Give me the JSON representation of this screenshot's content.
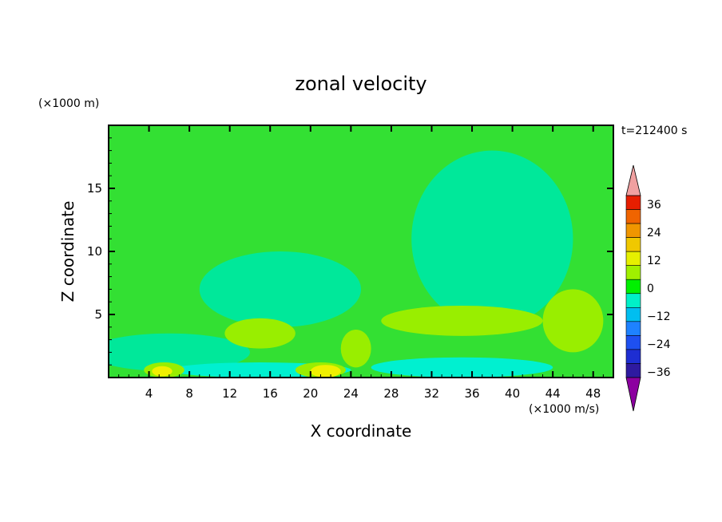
{
  "chart_data": {
    "type": "heatmap",
    "title": "zonal velocity",
    "xlabel": "X coordinate",
    "ylabel": "Z coordinate",
    "x_unit": "(×1000 m/s)",
    "y_unit": "(×1000 m)",
    "time_label": "t=212400 s",
    "xlim": [
      0,
      50
    ],
    "ylim": [
      0,
      20
    ],
    "xticks": [
      4,
      8,
      12,
      16,
      20,
      24,
      28,
      32,
      36,
      40,
      44,
      48
    ],
    "yticks": [
      5,
      10,
      15
    ],
    "colorbar": {
      "levels": [
        -42,
        -36,
        -30,
        -24,
        -18,
        -12,
        -6,
        0,
        6,
        12,
        18,
        24,
        30,
        36,
        42
      ],
      "labeled_ticks": [
        36,
        24,
        12,
        0,
        -12,
        -24,
        -36
      ],
      "colors": [
        "#7800a0",
        "#2e1aa0",
        "#1e2ed2",
        "#1e50f0",
        "#1e82ff",
        "#00bef0",
        "#00f0c8",
        "#00f000",
        "#a0f000",
        "#e6f000",
        "#f0c800",
        "#f09600",
        "#f06400",
        "#e61e00",
        "#f0a0a0"
      ],
      "over_color": "#f0a0a0",
      "under_color": "#8c00a0"
    },
    "fields": [
      {
        "level": -6,
        "description_value": "large weak negative region in upper right",
        "cx": 38,
        "cy": 11,
        "rx": 8,
        "ry": 7
      },
      {
        "level": -6,
        "cx": 17,
        "cy": 7,
        "rx": 8,
        "ry": 3
      },
      {
        "level": -6,
        "cx": 6,
        "cy": 2,
        "rx": 8,
        "ry": 1.5
      },
      {
        "level": -12,
        "cx": 15,
        "cy": 0.6,
        "rx": 9,
        "ry": 0.6
      },
      {
        "level": -12,
        "cx": 35,
        "cy": 0.8,
        "rx": 9,
        "ry": 0.8
      },
      {
        "level": 6,
        "cx": 15,
        "cy": 3.5,
        "rx": 3.5,
        "ry": 1.2
      },
      {
        "level": 6,
        "cx": 35,
        "cy": 4.5,
        "rx": 8,
        "ry": 1.2
      },
      {
        "level": 6,
        "cx": 46,
        "cy": 4.5,
        "rx": 3,
        "ry": 2.5
      },
      {
        "level": 6,
        "cx": 24.5,
        "cy": 2.3,
        "rx": 1.5,
        "ry": 1.5
      },
      {
        "level": 6,
        "cx": 5.5,
        "cy": 0.6,
        "rx": 2,
        "ry": 0.6
      },
      {
        "level": 6,
        "cx": 21,
        "cy": 0.6,
        "rx": 2.5,
        "ry": 0.6
      },
      {
        "level": 12,
        "cx": 21.5,
        "cy": 0.5,
        "rx": 1.5,
        "ry": 0.5
      },
      {
        "level": 12,
        "cx": 5.3,
        "cy": 0.5,
        "rx": 1,
        "ry": 0.4
      }
    ]
  }
}
